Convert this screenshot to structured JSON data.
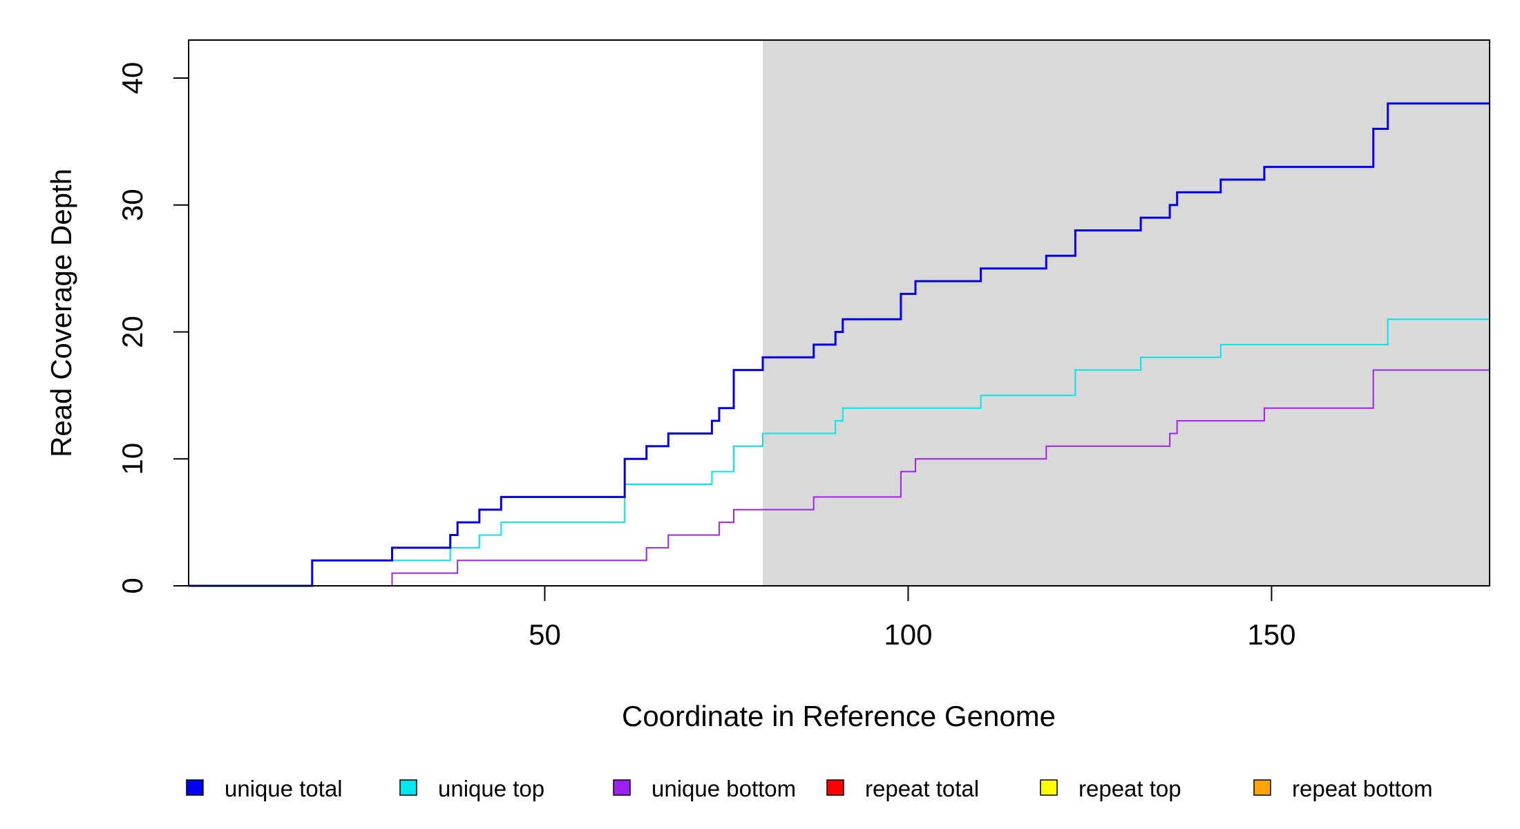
{
  "chart_data": {
    "type": "line",
    "step": true,
    "title": "",
    "xlabel": "Coordinate in Reference Genome",
    "ylabel": "Read Coverage Depth",
    "xlim": [
      1,
      180
    ],
    "ylim": [
      0,
      42
    ],
    "x_ticks": [
      50,
      100,
      150
    ],
    "y_ticks": [
      0,
      10,
      20,
      30,
      40
    ],
    "shaded_region": {
      "x_start": 80,
      "x_end": 180,
      "color": "#d9d9d9"
    },
    "legend_position": "bottom",
    "series": [
      {
        "name": "unique total",
        "color": "#0000ee",
        "points": [
          [
            1,
            0
          ],
          [
            18,
            2
          ],
          [
            29,
            3
          ],
          [
            37,
            4
          ],
          [
            38,
            5
          ],
          [
            41,
            6
          ],
          [
            44,
            7
          ],
          [
            61,
            10
          ],
          [
            64,
            11
          ],
          [
            67,
            12
          ],
          [
            73,
            13
          ],
          [
            74,
            14
          ],
          [
            76,
            17
          ],
          [
            80,
            18
          ],
          [
            87,
            19
          ],
          [
            90,
            20
          ],
          [
            91,
            21
          ],
          [
            99,
            23
          ],
          [
            101,
            24
          ],
          [
            110,
            25
          ],
          [
            119,
            26
          ],
          [
            123,
            28
          ],
          [
            132,
            29
          ],
          [
            136,
            30
          ],
          [
            137,
            31
          ],
          [
            143,
            32
          ],
          [
            149,
            33
          ],
          [
            164,
            36
          ],
          [
            166,
            38
          ],
          [
            180,
            38
          ]
        ]
      },
      {
        "name": "unique top",
        "color": "#00e5ee",
        "points": [
          [
            1,
            0
          ],
          [
            18,
            2
          ],
          [
            29,
            2
          ],
          [
            37,
            3
          ],
          [
            41,
            4
          ],
          [
            44,
            5
          ],
          [
            61,
            8
          ],
          [
            73,
            9
          ],
          [
            76,
            11
          ],
          [
            80,
            12
          ],
          [
            90,
            13
          ],
          [
            91,
            14
          ],
          [
            110,
            15
          ],
          [
            123,
            17
          ],
          [
            132,
            18
          ],
          [
            143,
            19
          ],
          [
            166,
            21
          ],
          [
            180,
            21
          ]
        ]
      },
      {
        "name": "unique bottom",
        "color": "#a020f0",
        "points": [
          [
            1,
            0
          ],
          [
            29,
            1
          ],
          [
            38,
            2
          ],
          [
            64,
            3
          ],
          [
            67,
            4
          ],
          [
            74,
            5
          ],
          [
            76,
            6
          ],
          [
            87,
            7
          ],
          [
            99,
            9
          ],
          [
            101,
            10
          ],
          [
            119,
            11
          ],
          [
            136,
            12
          ],
          [
            137,
            13
          ],
          [
            149,
            14
          ],
          [
            164,
            17
          ],
          [
            180,
            17
          ]
        ]
      },
      {
        "name": "repeat total",
        "color": "#ff0000",
        "points": [
          [
            1,
            0
          ],
          [
            180,
            0
          ]
        ]
      },
      {
        "name": "repeat top",
        "color": "#ffff00",
        "points": [
          [
            1,
            0
          ],
          [
            180,
            0
          ]
        ]
      },
      {
        "name": "repeat bottom",
        "color": "#ffa500",
        "points": [
          [
            1,
            0
          ],
          [
            180,
            0
          ]
        ]
      }
    ]
  }
}
